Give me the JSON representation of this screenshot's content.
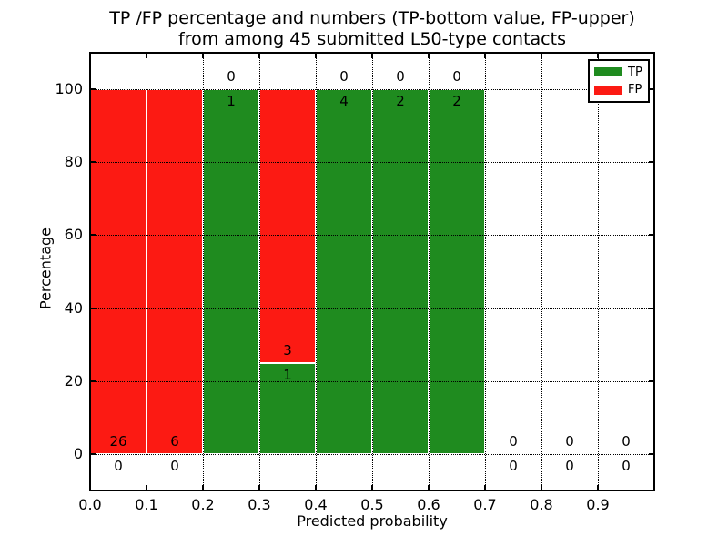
{
  "title": {
    "line1": "TP /FP percentage and numbers (TP-bottom value, FP-upper)",
    "line2": "from among 45 submitted L50-type contacts"
  },
  "axes": {
    "xlabel": "Predicted probability",
    "ylabel": "Percentage"
  },
  "legend": {
    "items": [
      {
        "label": "TP",
        "color": "#1f8b1f"
      },
      {
        "label": "FP",
        "color": "#fc1a13"
      }
    ]
  },
  "chart_data": {
    "type": "bar",
    "stacked": true,
    "title": "TP /FP percentage and numbers (TP-bottom value, FP-upper) from among 45 submitted L50-type contacts",
    "xlabel": "Predicted probability",
    "ylabel": "Percentage",
    "xlim": [
      0.0,
      1.0
    ],
    "ylim": [
      -10,
      110
    ],
    "bin_width": 0.1,
    "total_submitted": 45,
    "grid": "dotted",
    "legend_position": "upper-right",
    "x_ticks": [
      0.0,
      0.1,
      0.2,
      0.3,
      0.4,
      0.5,
      0.6,
      0.7,
      0.8,
      0.9
    ],
    "x_tick_labels": [
      "0.0",
      "0.1",
      "0.2",
      "0.3",
      "0.4",
      "0.5",
      "0.6",
      "0.7",
      "0.8",
      "0.9"
    ],
    "y_ticks": [
      0,
      20,
      40,
      60,
      80,
      100
    ],
    "y_tick_labels": [
      "0",
      "20",
      "40",
      "60",
      "80",
      "100"
    ],
    "bars": [
      {
        "x0": 0.0,
        "x1": 0.1,
        "tp": 0,
        "fp": 26,
        "tp_percent": 0
      },
      {
        "x0": 0.1,
        "x1": 0.2,
        "tp": 0,
        "fp": 6,
        "tp_percent": 0
      },
      {
        "x0": 0.2,
        "x1": 0.3,
        "tp": 1,
        "fp": 0,
        "tp_percent": 100
      },
      {
        "x0": 0.3,
        "x1": 0.4,
        "tp": 1,
        "fp": 3,
        "tp_percent": 25
      },
      {
        "x0": 0.4,
        "x1": 0.5,
        "tp": 4,
        "fp": 0,
        "tp_percent": 100
      },
      {
        "x0": 0.5,
        "x1": 0.6,
        "tp": 2,
        "fp": 0,
        "tp_percent": 100
      },
      {
        "x0": 0.6,
        "x1": 0.7,
        "tp": 2,
        "fp": 0,
        "tp_percent": 100
      },
      {
        "x0": 0.7,
        "x1": 0.8,
        "tp": 0,
        "fp": 0,
        "tp_percent": 0
      },
      {
        "x0": 0.8,
        "x1": 0.9,
        "tp": 0,
        "fp": 0,
        "tp_percent": 0
      },
      {
        "x0": 0.9,
        "x1": 1.0,
        "tp": 0,
        "fp": 0,
        "tp_percent": 0
      }
    ],
    "series": [
      {
        "name": "TP",
        "color": "#1f8b1f",
        "values": [
          0,
          0,
          1,
          1,
          4,
          2,
          2,
          0,
          0,
          0
        ]
      },
      {
        "name": "FP",
        "color": "#fc1a13",
        "values": [
          26,
          6,
          0,
          3,
          0,
          0,
          0,
          0,
          0,
          0
        ]
      }
    ]
  }
}
